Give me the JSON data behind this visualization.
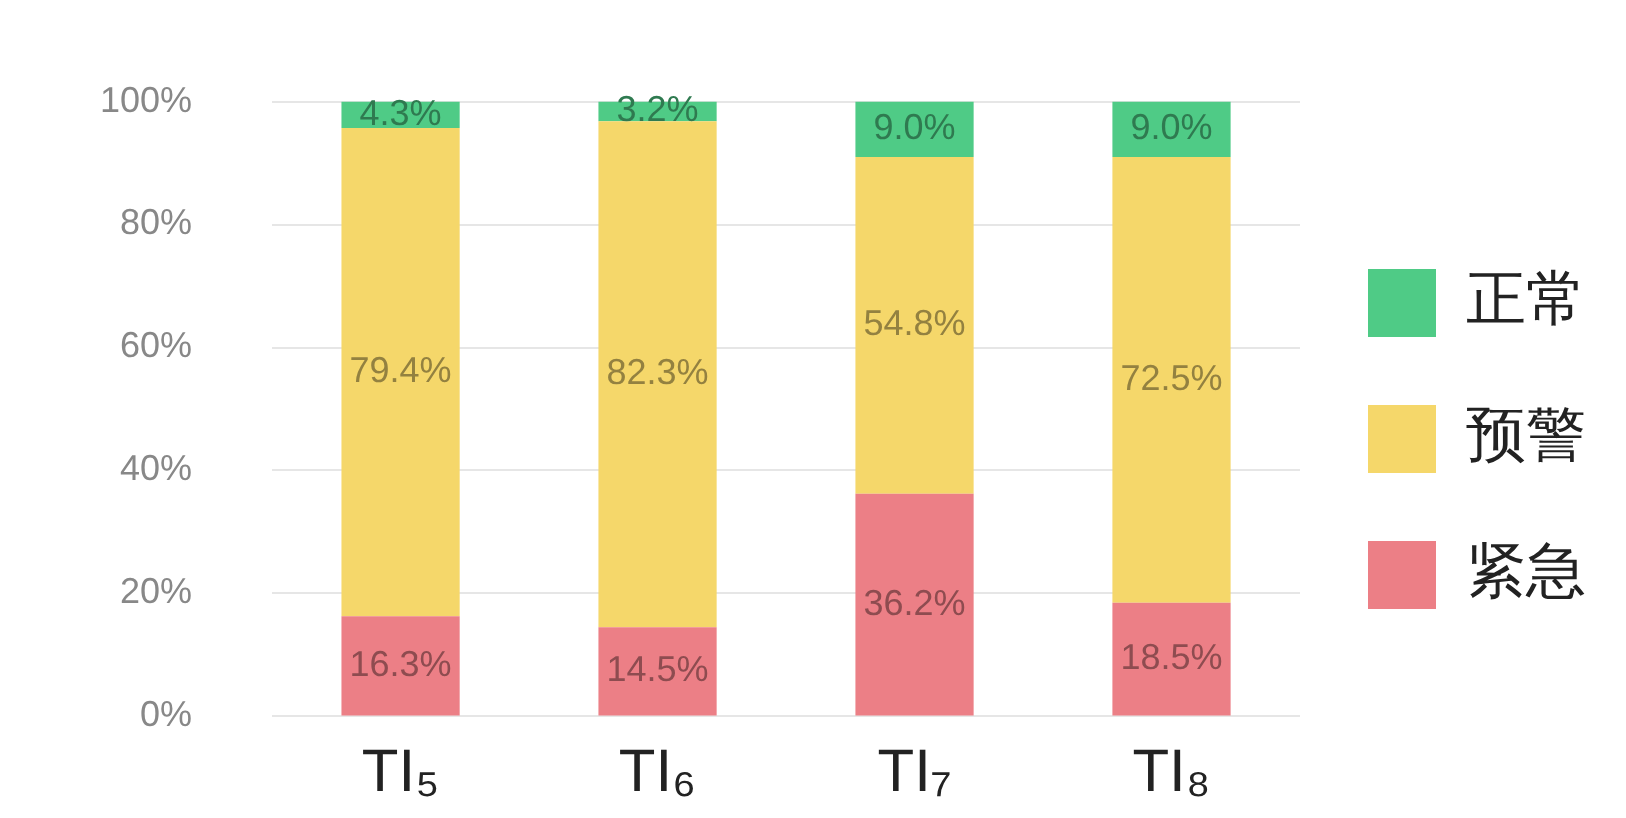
{
  "chart_data": {
    "type": "bar",
    "stacked": true,
    "categories": [
      "TI₅",
      "TI₆",
      "TI₇",
      "TI₈"
    ],
    "series": [
      {
        "name": "紧急",
        "color": "#ec7f86",
        "values": [
          16.3,
          14.5,
          36.2,
          18.5
        ],
        "value_labels": [
          "16.3%",
          "14.5%",
          "36.2%",
          "18.5%"
        ]
      },
      {
        "name": "预警",
        "color": "#f5d76a",
        "values": [
          79.4,
          82.3,
          54.8,
          72.5
        ],
        "value_labels": [
          "79.4%",
          "82.3%",
          "54.8%",
          "72.5%"
        ]
      },
      {
        "name": "正常",
        "color": "#4fcb86",
        "values": [
          4.3,
          3.2,
          9.0,
          9.0
        ],
        "value_labels": [
          "4.3%",
          "3.2%",
          "9.0%",
          "9.0%"
        ]
      }
    ],
    "ylim": [
      0,
      100
    ],
    "yticks": [
      {
        "value": 0,
        "label": "0%"
      },
      {
        "value": 20,
        "label": "20%"
      },
      {
        "value": 40,
        "label": "40%"
      },
      {
        "value": 60,
        "label": "60%"
      },
      {
        "value": 80,
        "label": "80%"
      },
      {
        "value": 100,
        "label": "100%"
      }
    ],
    "grid": "y",
    "legend": "right"
  }
}
